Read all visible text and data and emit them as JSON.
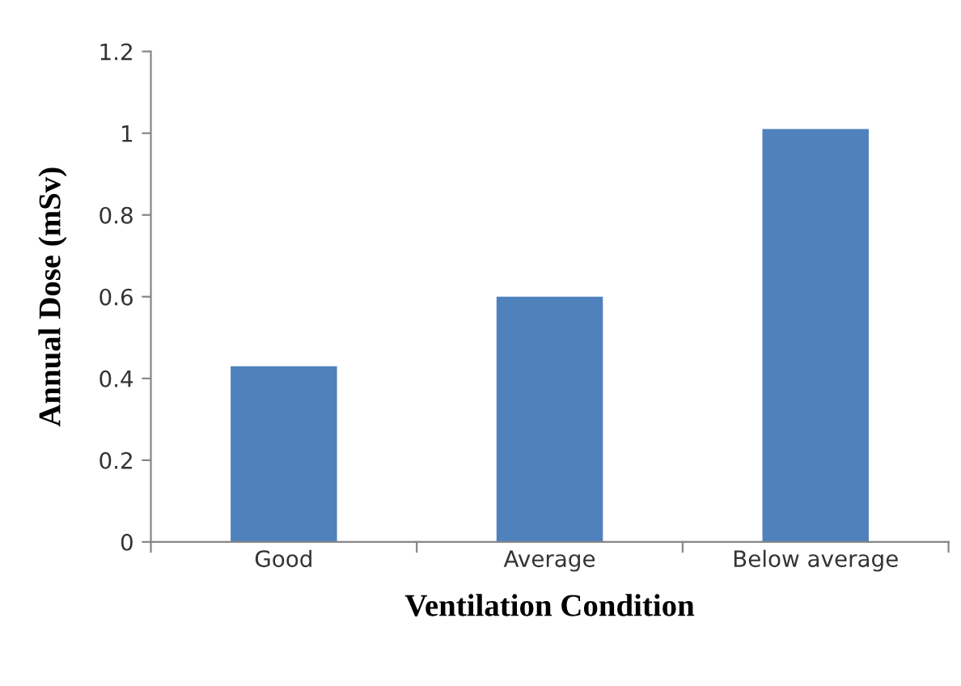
{
  "chart_data": {
    "type": "bar",
    "xlabel": "Ventilation Condition",
    "ylabel": "Annual Dose (mSv)",
    "categories": [
      "Good",
      "Average",
      "Below average"
    ],
    "values": [
      0.43,
      0.6,
      1.01
    ],
    "color": "#4f81bd",
    "ylim": [
      0,
      1.2
    ],
    "yticks": [
      0,
      0.2,
      0.4,
      0.6,
      0.8,
      1,
      1.2
    ],
    "grid": false
  }
}
